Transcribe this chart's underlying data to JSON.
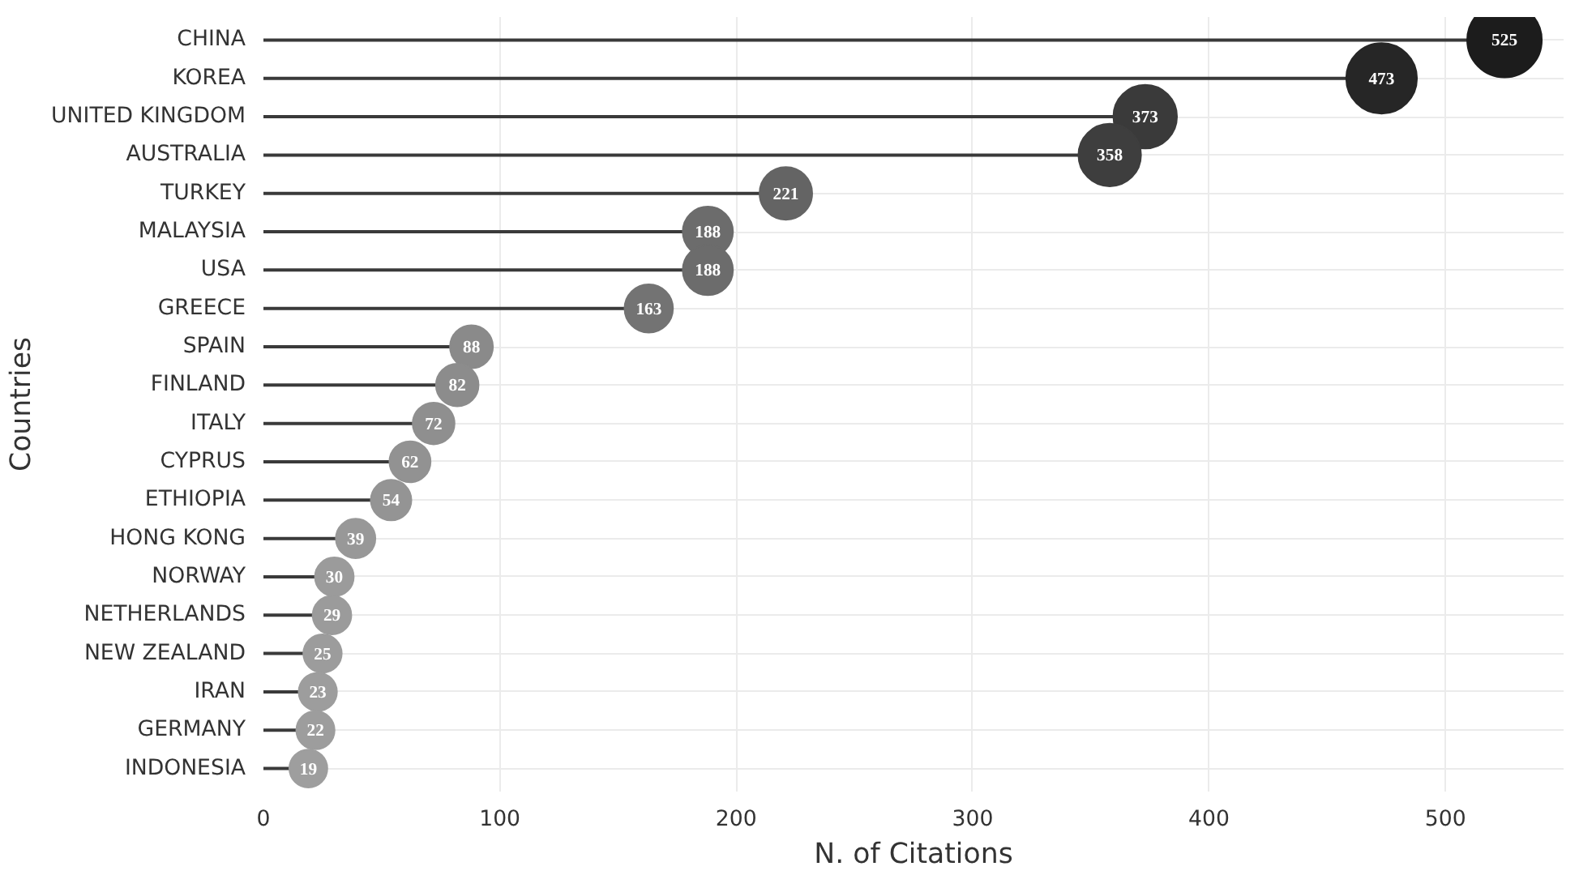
{
  "chart_data": {
    "type": "lollipop",
    "orientation": "horizontal",
    "xlabel": "N. of Citations",
    "ylabel": "Countries",
    "categories": [
      "CHINA",
      "KOREA",
      "UNITED KINGDOM",
      "AUSTRALIA",
      "TURKEY",
      "MALAYSIA",
      "USA",
      "GREECE",
      "SPAIN",
      "FINLAND",
      "ITALY",
      "CYPRUS",
      "ETHIOPIA",
      "HONG KONG",
      "NORWAY",
      "NETHERLANDS",
      "NEW ZEALAND",
      "IRAN",
      "GERMANY",
      "INDONESIA"
    ],
    "values": [
      525,
      473,
      373,
      358,
      221,
      188,
      188,
      163,
      88,
      82,
      72,
      62,
      54,
      39,
      30,
      29,
      25,
      23,
      22,
      19
    ],
    "colors": [
      "#1c1c1c",
      "#262626",
      "#3a3a3a",
      "#3e3e3e",
      "#646464",
      "#6c6c6c",
      "#6c6c6c",
      "#737373",
      "#8a8a8a",
      "#8c8c8c",
      "#8f8f8f",
      "#929292",
      "#949494",
      "#989898",
      "#9b9b9b",
      "#9b9b9b",
      "#9c9c9c",
      "#9d9d9d",
      "#9d9d9d",
      "#9e9e9e"
    ],
    "sizes": [
      1,
      0.9,
      0.727,
      0.703,
      0.498,
      0.453,
      0.453,
      0.421,
      0.332,
      0.326,
      0.314,
      0.304,
      0.296,
      0.28,
      0.27,
      0.268,
      0.265,
      0.263,
      0.263,
      0.259
    ],
    "xlim": [
      0,
      550
    ],
    "xticks": [
      0,
      100,
      200,
      300,
      400,
      500
    ],
    "grid": true,
    "data_labels": true
  }
}
